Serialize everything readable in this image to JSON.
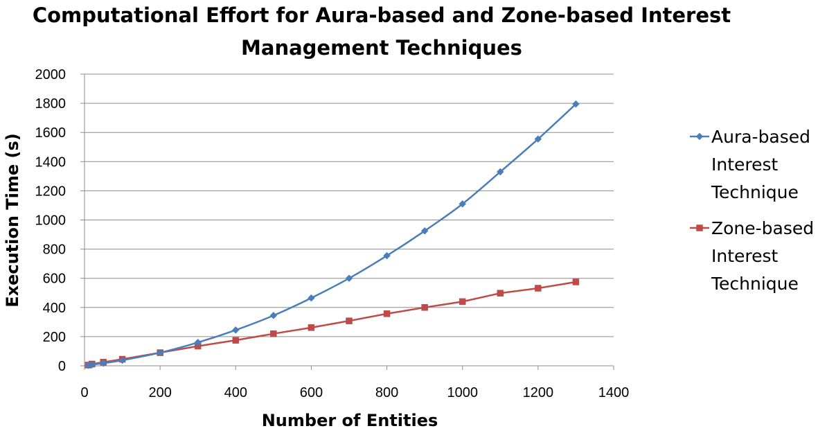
{
  "chart_data": {
    "type": "line",
    "title_lines": [
      "Computational Effort for Aura-based and Zone-based Interest",
      "Management Techniques"
    ],
    "xlabel": "Number of Entities",
    "ylabel": "Execution Time  (s)",
    "xlim": [
      0,
      1400
    ],
    "ylim": [
      0,
      2000
    ],
    "xticks": [
      0,
      200,
      400,
      600,
      800,
      1000,
      1200,
      1400
    ],
    "yticks": [
      0,
      200,
      400,
      600,
      800,
      1000,
      1200,
      1400,
      1600,
      1800,
      2000
    ],
    "grid": "horizontal",
    "legend_position": "right",
    "series": [
      {
        "name_lines": [
          "Aura-based",
          "Interest",
          "Technique"
        ],
        "color": "#4a7ebb",
        "marker": "diamond",
        "smooth": true,
        "x": [
          10,
          20,
          50,
          100,
          200,
          300,
          400,
          500,
          600,
          700,
          800,
          900,
          1000,
          1100,
          1200,
          1300
        ],
        "y": [
          3,
          8,
          18,
          38,
          90,
          160,
          245,
          345,
          465,
          600,
          755,
          925,
          1110,
          1330,
          1555,
          1795
        ]
      },
      {
        "name_lines": [
          "Zone-based",
          "Interest",
          "Technique"
        ],
        "color": "#be4b48",
        "marker": "square",
        "smooth": false,
        "x": [
          10,
          20,
          50,
          100,
          200,
          300,
          400,
          500,
          600,
          700,
          800,
          900,
          1000,
          1100,
          1200,
          1300
        ],
        "y": [
          5,
          12,
          25,
          45,
          90,
          135,
          175,
          220,
          262,
          308,
          357,
          400,
          440,
          498,
          532,
          575
        ]
      }
    ]
  }
}
